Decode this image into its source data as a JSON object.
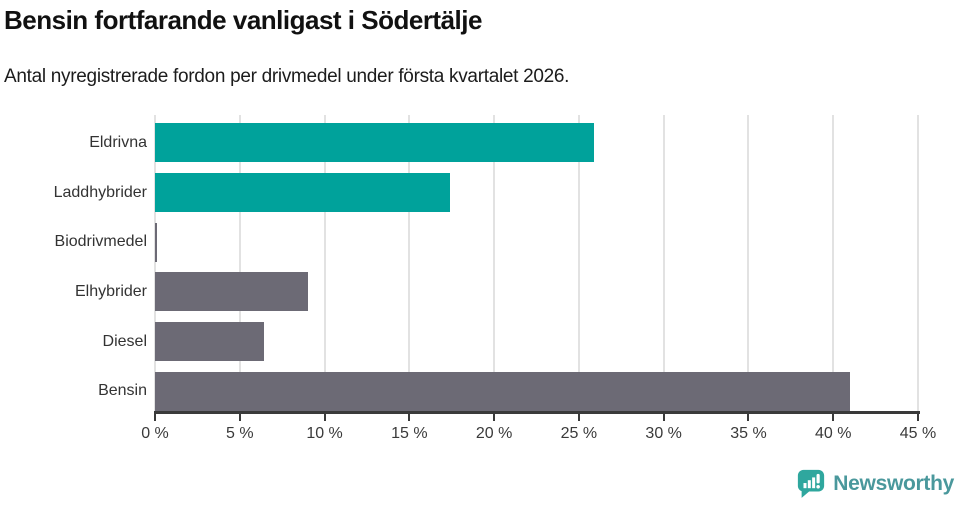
{
  "header": {
    "title": "Bensin fortfarande vanligast i Södertälje",
    "subtitle": "Antal nyregistrerade fordon per drivmedel under första kvartalet 2026."
  },
  "chart_data": {
    "type": "bar",
    "orientation": "horizontal",
    "title": "Bensin fortfarande vanligast i Södertälje",
    "subtitle": "Antal nyregistrerade fordon per drivmedel under första kvartalet 2026.",
    "categories": [
      "Eldrivna",
      "Laddhybrider",
      "Biodrivmedel",
      "Elhybrider",
      "Diesel",
      "Bensin"
    ],
    "values": [
      25.9,
      17.4,
      0.1,
      9.0,
      6.4,
      41.0
    ],
    "unit": "%",
    "bar_colors": [
      "#00a29b",
      "#00a29b",
      "#6c6a75",
      "#6c6a75",
      "#6c6a75",
      "#6c6a75"
    ],
    "xlabel": "",
    "ylabel": "",
    "xlim": [
      0,
      45
    ],
    "x_tick_labels": [
      "0 %",
      "5 %",
      "10 %",
      "15 %",
      "20 %",
      "25 %",
      "30 %",
      "35 %",
      "40 %",
      "45 %"
    ],
    "grid": true,
    "legend": false
  },
  "colors": {
    "teal": "#00a29b",
    "gray": "#6c6a75",
    "axis": "#3a3a3a",
    "gridline": "#e2e2e2"
  },
  "footer": {
    "brand_label": "Newsworthy"
  }
}
